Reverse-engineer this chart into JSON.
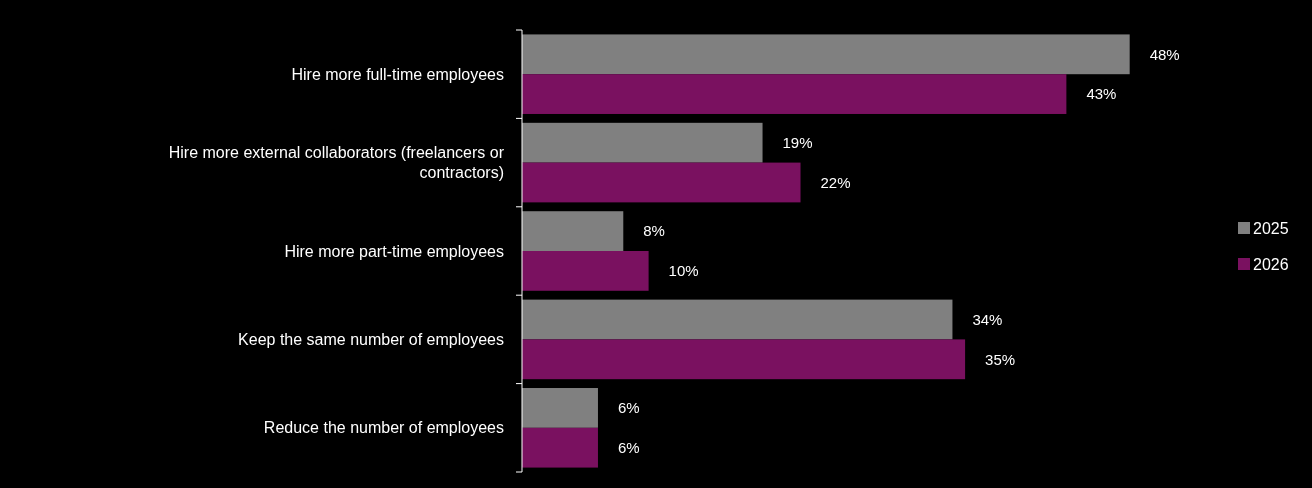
{
  "chart_data": {
    "type": "bar",
    "orientation": "horizontal",
    "categories": [
      "Hire more full-time employees",
      "Hire more external collaborators (freelancers or contractors)",
      "Hire more part-time employees",
      "Keep the same number of employees",
      "Reduce the number of employees"
    ],
    "series": [
      {
        "name": "2025",
        "color": "#808080",
        "values": [
          48,
          19,
          8,
          34,
          6
        ],
        "value_labels": [
          "48%",
          "19%",
          "8%",
          "34%",
          "6%"
        ]
      },
      {
        "name": "2026",
        "color": "#7a1160",
        "values": [
          43,
          22,
          10,
          35,
          6
        ],
        "value_labels": [
          "43%",
          "22%",
          "10%",
          "35%",
          "6%"
        ]
      }
    ],
    "legend": "right"
  }
}
